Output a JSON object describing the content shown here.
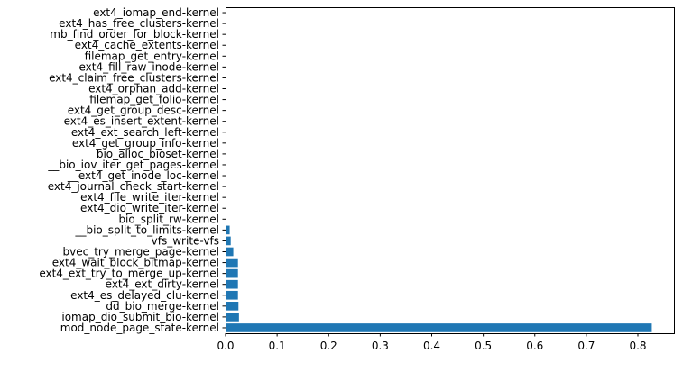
{
  "chart_data": {
    "type": "bar",
    "orientation": "horizontal",
    "title": "",
    "xlabel": "",
    "ylabel": "",
    "xlim": [
      0,
      0.87
    ],
    "x_ticks": [
      0.0,
      0.1,
      0.2,
      0.3,
      0.4,
      0.5,
      0.6,
      0.7,
      0.8
    ],
    "x_tick_labels": [
      "0.0",
      "0.1",
      "0.2",
      "0.3",
      "0.4",
      "0.5",
      "0.6",
      "0.7",
      "0.8"
    ],
    "bar_color": "#1f77b4",
    "grid": false,
    "categories": [
      "mod_node_page_state-kernel",
      "iomap_dio_submit_bio-kernel",
      "dd_bio_merge-kernel",
      "ext4_es_delayed_clu-kernel",
      "ext4_ext_dirty-kernel",
      "ext4_ext_try_to_merge_up-kernel",
      "ext4_wait_block_bitmap-kernel",
      "bvec_try_merge_page-kernel",
      "vfs_write-vfs",
      "__bio_split_to_limits-kernel",
      "bio_split_rw-kernel",
      "ext4_dio_write_iter-kernel",
      "ext4_file_write_iter-kernel",
      "ext4_journal_check_start-kernel",
      "__ext4_get_inode_loc-kernel",
      "__bio_iov_iter_get_pages-kernel",
      "bio_alloc_bioset-kernel",
      "ext4_get_group_info-kernel",
      "ext4_ext_search_left-kernel",
      "ext4_es_insert_extent-kernel",
      "ext4_get_group_desc-kernel",
      "filemap_get_folio-kernel",
      "ext4_orphan_add-kernel",
      "ext4_claim_free_clusters-kernel",
      "ext4_fill_raw_inode-kernel",
      "filemap_get_entry-kernel",
      "ext4_cache_extents-kernel",
      "mb_find_order_for_block-kernel",
      "ext4_has_free_clusters-kernel",
      "ext4_iomap_end-kernel"
    ],
    "values": [
      0.827,
      0.026,
      0.025,
      0.024,
      0.024,
      0.024,
      0.024,
      0.015,
      0.01,
      0.008,
      0.0015,
      0.001,
      0.001,
      0.0008,
      0.0008,
      0.0007,
      0.0006,
      0.0006,
      0.0005,
      0.0005,
      0.0004,
      0.0004,
      0.0003,
      0.0003,
      0.0003,
      0.0002,
      0.0002,
      0.0002,
      0.0001,
      0.0001
    ]
  }
}
